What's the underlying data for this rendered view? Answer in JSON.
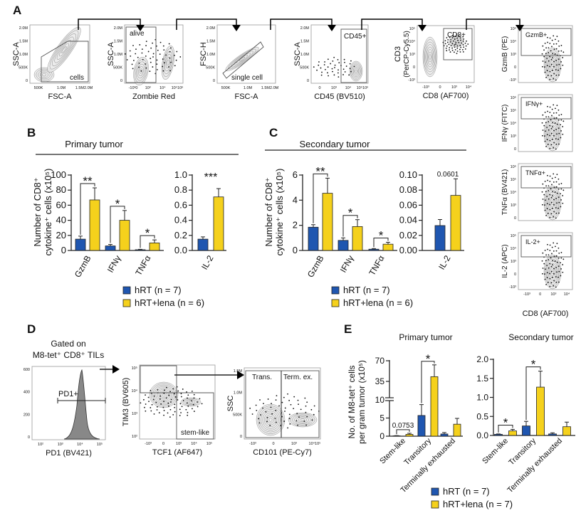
{
  "colors": {
    "hRT": "#1f56b0",
    "lena": "#f5d11c",
    "axis": "#222222",
    "flow": "#8a8a8a"
  },
  "panel_labels": {
    "a": "A",
    "b": "B",
    "c": "C",
    "d": "D",
    "e": "E"
  },
  "panel_a": {
    "plots": [
      {
        "ylabel": "SSC-A",
        "xlabel": "FSC-A",
        "yticks": [
          "2.0M",
          "1.5M",
          "1.0M",
          "500K",
          "0"
        ],
        "xticks": [
          "500K",
          "1.0M",
          "1.5M2.0M"
        ],
        "gate": "cells"
      },
      {
        "ylabel": "SSC-A",
        "xlabel": "Zombie Red",
        "yticks": [
          "2.0M",
          "1.5M",
          "1.0M",
          "500K",
          "0"
        ],
        "xticks": [
          "-10³0",
          "10³",
          "10⁴",
          "10⁵10⁶"
        ],
        "gate": "alive"
      },
      {
        "ylabel": "FSC-H",
        "xlabel": "FSC-A",
        "yticks": [
          "2.0M",
          "1.5M",
          "1.0M",
          "500K",
          "0"
        ],
        "xticks": [
          "500K",
          "1.0M",
          "1.5M2.0M"
        ],
        "gate": "single cell"
      },
      {
        "ylabel": "SSC-A",
        "xlabel": "CD45 (BV510)",
        "yticks": [
          "2.0M",
          "1.5M",
          "1.0M",
          "500K",
          "0"
        ],
        "xticks": [
          "0",
          "10³",
          "10⁴",
          "10⁵10⁶"
        ],
        "gate": "CD45+"
      },
      {
        "ylabel": "CD3",
        "ylabel2": "(PerCP-Cy5.5)",
        "xlabel": "CD8 (AF700)",
        "yticks": [
          "10⁵",
          "10⁴",
          "10³",
          "0",
          "-10³"
        ],
        "xticks": [
          "-10³",
          "0",
          "10³",
          "10⁴"
        ],
        "gate": "CD8+"
      }
    ],
    "cytokine_plots": [
      {
        "ylabel": "GzmB (PE)",
        "gate": "GzmB+",
        "yticks": [
          "10⁵",
          "10⁴",
          "10³",
          "0",
          "-10³"
        ]
      },
      {
        "ylabel": "IFNγ (FITC)",
        "gate": "IFNγ+",
        "yticks": [
          "10⁶",
          "10⁵",
          "10⁴",
          "10³",
          "0"
        ]
      },
      {
        "ylabel": "TNFα (BV421)",
        "gate": "TNFα+",
        "yticks": [
          "10⁶",
          "10⁵",
          "10⁴",
          "10³",
          "0"
        ]
      },
      {
        "ylabel": "IL-2 (APC)",
        "gate": "IL-2+",
        "yticks": [
          "10⁵",
          "10⁴",
          "10³",
          "0",
          "-10³"
        ]
      }
    ],
    "cytokine_xlabel": "CD8 (AF700)",
    "cytokine_xticks": [
      "-10³",
      "0",
      "10³",
      "10⁴"
    ]
  },
  "panel_b": {
    "title": "Primary tumor",
    "ylabel_line1": "Number of CD8⁺",
    "ylabel_line2": "cytokine⁺ cells (x10⁵)",
    "legend": [
      "hRT (n = 7)",
      "hRT+lena (n = 6)"
    ]
  },
  "panel_c": {
    "title": "Secondary tumor",
    "ylabel_line1": "Number of CD8⁺",
    "ylabel_line2": "cytokine⁺ cells (x10⁵)",
    "legend": [
      "hRT (n = 7)",
      "hRT+lena (n = 6)"
    ]
  },
  "panel_d": {
    "gated_line1": "Gated on",
    "gated_line2": "M8-tet⁺ CD8⁺ TILs",
    "histogram": {
      "xlabel": "PD1 (BV421)",
      "yticks": [
        "600",
        "400",
        "200",
        "0"
      ],
      "xticks": [
        "10²",
        "10³",
        "10⁴",
        "10⁵"
      ],
      "gate": "PD1+"
    },
    "tim3": {
      "ylabel": "TIM3 (BV605)",
      "xlabel": "TCF1 (AF647)",
      "yticks": [
        "10⁵",
        "10⁴",
        "10³",
        "10²"
      ],
      "xticks": [
        "-10³",
        "0",
        "10³",
        "10⁴",
        "10⁵"
      ],
      "gate": "stem-like"
    },
    "ssc": {
      "ylabel": "SSC",
      "xlabel": "CD101 (PE-Cy7)",
      "yticks": [
        "1.5M",
        "1.0M",
        "500K",
        "0"
      ],
      "xticks": [
        "-10³",
        "0",
        "10³",
        "10⁴10⁵"
      ],
      "gates": [
        "Trans.",
        "Term. ex."
      ]
    }
  },
  "panel_e": {
    "titles": [
      "Primary tumor",
      "Secondary tumor"
    ],
    "ylabel_line1": "No. of M8-tet⁺ cells",
    "ylabel_line2": "per gram tumor (x10⁵)",
    "legend": [
      "hRT (n = 7)",
      "hRT+lena (n = 7)"
    ]
  },
  "chart_data": [
    {
      "id": "B-left",
      "type": "bar",
      "title": "Primary tumor",
      "ylabel": "Number of CD8⁺ cytokine⁺ cells (x10⁵)",
      "categories": [
        "GzmB",
        "IFNγ",
        "TNFα"
      ],
      "ylim": [
        0,
        100
      ],
      "yticks": [
        "0",
        "20",
        "40",
        "60",
        "80",
        "100"
      ],
      "series": [
        {
          "name": "hRT (n = 7)",
          "values": [
            15,
            6,
            1
          ],
          "errors": [
            4,
            2,
            0.5
          ]
        },
        {
          "name": "hRT+lena (n = 6)",
          "values": [
            67,
            40,
            10
          ],
          "errors": [
            16,
            13,
            4
          ]
        }
      ],
      "significance": [
        "**",
        "*",
        "*"
      ]
    },
    {
      "id": "B-right",
      "type": "bar",
      "categories": [
        "IL-2"
      ],
      "ylim": [
        0,
        1.0
      ],
      "yticks": [
        "0.0",
        "0.2",
        "0.4",
        "0.6",
        "0.8",
        "1.0"
      ],
      "series": [
        {
          "name": "hRT (n = 7)",
          "values": [
            0.15
          ],
          "errors": [
            0.03
          ]
        },
        {
          "name": "hRT+lena (n = 6)",
          "values": [
            0.71
          ],
          "errors": [
            0.11
          ]
        }
      ],
      "significance": [
        "***"
      ]
    },
    {
      "id": "C-left",
      "type": "bar",
      "title": "Secondary tumor",
      "ylabel": "Number of CD8⁺ cytokine⁺ cells (x10⁵)",
      "categories": [
        "GzmB",
        "IFNγ",
        "TNFα"
      ],
      "ylim": [
        0,
        6
      ],
      "yticks": [
        "0",
        "2",
        "4",
        "6"
      ],
      "series": [
        {
          "name": "hRT (n = 7)",
          "values": [
            1.85,
            0.8,
            0.1
          ],
          "errors": [
            0.2,
            0.2,
            0.05
          ]
        },
        {
          "name": "hRT+lena (n = 6)",
          "values": [
            4.55,
            1.9,
            0.5
          ],
          "errors": [
            1.2,
            0.55,
            0.15
          ]
        }
      ],
      "significance": [
        "**",
        "*",
        "*"
      ]
    },
    {
      "id": "C-right",
      "type": "bar",
      "categories": [
        "IL-2"
      ],
      "ylim": [
        0,
        0.1
      ],
      "yticks": [
        "0.00",
        "0.02",
        "0.04",
        "0.06",
        "0.08",
        "0.10"
      ],
      "series": [
        {
          "name": "hRT (n = 7)",
          "values": [
            0.033
          ],
          "errors": [
            0.008
          ]
        },
        {
          "name": "hRT+lena (n = 6)",
          "values": [
            0.073
          ],
          "errors": [
            0.022
          ]
        }
      ],
      "significance": [
        "0.0601"
      ]
    },
    {
      "id": "E-left",
      "type": "bar",
      "title": "Primary tumor",
      "ylabel": "No. of M8-tet⁺ cells per gram tumor (x10⁵)",
      "categories": [
        "Stem-like",
        "Transitory",
        "Terminally exhausted"
      ],
      "ylim": [
        0,
        70
      ],
      "axis_break": [
        10,
        35
      ],
      "yticks": [
        "0",
        "5",
        "10",
        "35",
        "70"
      ],
      "series": [
        {
          "name": "hRT (n = 7)",
          "values": [
            0.1,
            5.7,
            0.6
          ],
          "errors": [
            0.05,
            3.0,
            0.4
          ]
        },
        {
          "name": "hRT+lena (n = 7)",
          "values": [
            0.5,
            43,
            3.3
          ],
          "errors": [
            0.3,
            20,
            1.6
          ]
        }
      ],
      "significance": [
        "0.0753",
        "*",
        ""
      ]
    },
    {
      "id": "E-right",
      "type": "bar",
      "title": "Secondary tumor",
      "categories": [
        "Stem-like",
        "Transitory",
        "Terminally exhausted"
      ],
      "ylim": [
        0,
        2.0
      ],
      "yticks": [
        "0.0",
        "0.5",
        "1.0",
        "1.5",
        "2.0"
      ],
      "series": [
        {
          "name": "hRT (n = 7)",
          "values": [
            0.03,
            0.25,
            0.04
          ],
          "errors": [
            0.01,
            0.12,
            0.03
          ]
        },
        {
          "name": "hRT+lena (n = 7)",
          "values": [
            0.12,
            1.27,
            0.23
          ],
          "errors": [
            0.04,
            0.42,
            0.12
          ]
        }
      ],
      "significance": [
        "*",
        "*",
        ""
      ]
    }
  ]
}
